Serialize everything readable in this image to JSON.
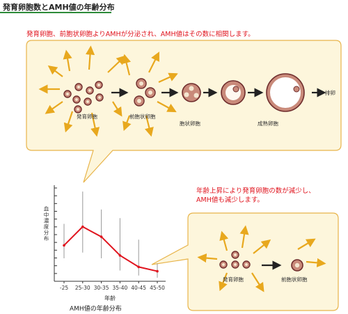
{
  "page_title": "発育卵胞数とAMH値の年齢分布",
  "top_caption": "発育卵胞、前胞状卵胞よりAMHが分泌され、AMH値はその数に相関します。",
  "stage_labels": {
    "growing": "発育卵胞",
    "preantral": "前胞状卵胞",
    "antral": "胞状卵胞",
    "mature": "成熟卵胞",
    "ovulation": "排卵"
  },
  "bottom_caption_line1": "年齢上昇により発育卵胞の数が減少し、",
  "bottom_caption_line2": "AMH値も減少します。",
  "bottom_labels": {
    "growing": "発育卵胞",
    "preantral": "前胞状卵胞"
  },
  "chart": {
    "ylabel": "血中濃度分布",
    "xlabel": "年齢",
    "caption": "AMH値の年齢分布"
  },
  "chart_data": {
    "type": "line",
    "categories": [
      "-25",
      "25-30",
      "30-35",
      "35-40",
      "40-45",
      "45-50"
    ],
    "values": [
      5.0,
      7.6,
      6.2,
      3.6,
      2.0,
      1.4
    ],
    "ranges": [
      [
        3.2,
        8.0
      ],
      [
        4.0,
        12.5
      ],
      [
        3.2,
        10.0
      ],
      [
        1.5,
        8.8
      ],
      [
        0.8,
        5.8
      ],
      [
        0.5,
        2.5
      ]
    ],
    "ylim": [
      0,
      13
    ],
    "xlabel": "年齢",
    "ylabel": "血中濃度分布",
    "title": "",
    "grid": false
  },
  "colors": {
    "line": "#e0141e",
    "arrow": "#e8a81e",
    "bubble_fill": "#fdf6dc",
    "bubble_stroke": "#e8b44a",
    "cell": "#8a3b3b",
    "title_rule": "#2e8b3a"
  }
}
